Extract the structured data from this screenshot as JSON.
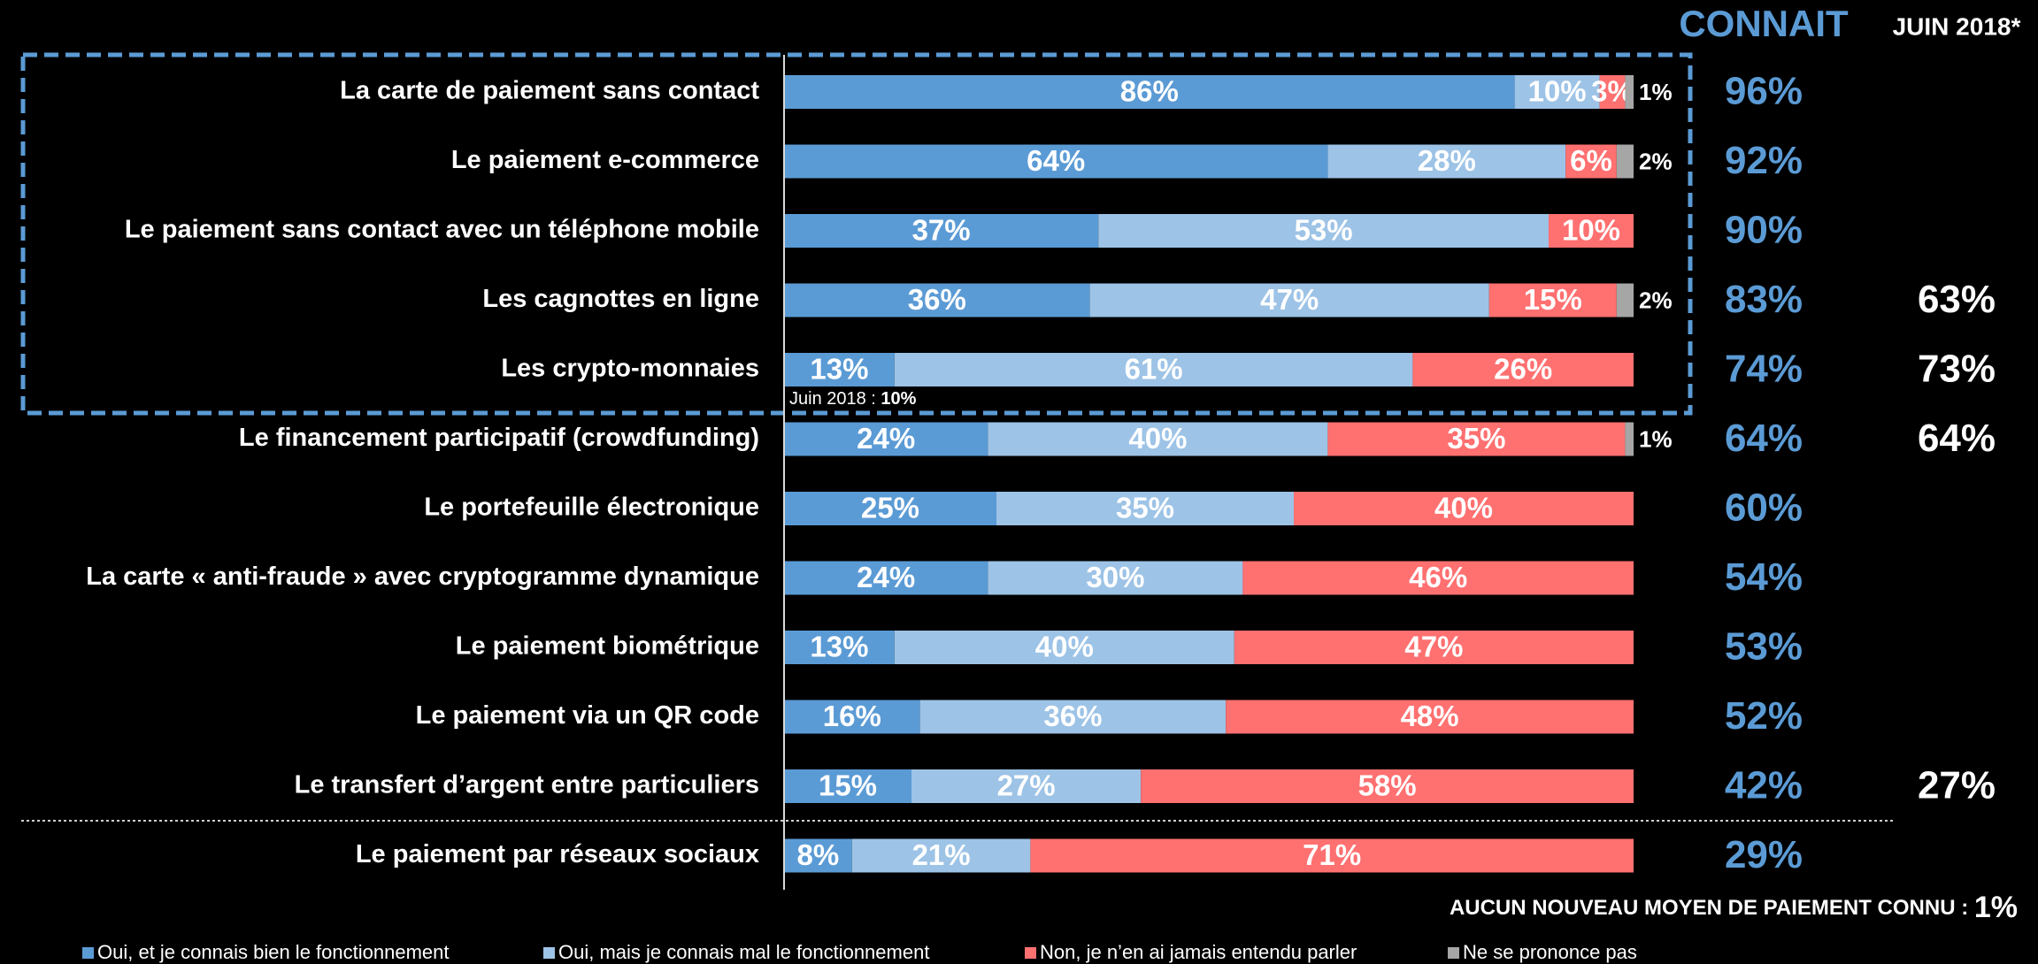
{
  "chart_data": {
    "type": "bar",
    "orientation": "horizontal",
    "stacked": true,
    "xlim": [
      0,
      100
    ],
    "categories": [
      "La carte de paiement sans contact",
      "Le paiement e-commerce",
      "Le paiement sans contact avec un téléphone mobile",
      "Les cagnottes en ligne",
      "Les crypto-monnaies",
      "Le financement participatif (crowdfunding)",
      "Le portefeuille électronique",
      "La carte « anti-fraude » avec cryptogramme dynamique",
      "Le paiement biométrique",
      "Le paiement via un QR code",
      "Le transfert d’argent entre particuliers",
      "Le paiement par réseaux sociaux"
    ],
    "series": [
      {
        "name": "Oui, et je connais bien le fonctionnement",
        "color": "#5b9bd5",
        "values": [
          86,
          64,
          37,
          36,
          13,
          24,
          25,
          24,
          13,
          16,
          15,
          8
        ],
        "value_labels": [
          "86%",
          "64%",
          "37%",
          "36%",
          "13%",
          "24%",
          "25%",
          "24%",
          "13%",
          "16%",
          "15%",
          "8%"
        ]
      },
      {
        "name": "Oui, mais je connais mal le fonctionnement",
        "color": "#9dc3e6",
        "values": [
          10,
          28,
          53,
          47,
          61,
          40,
          35,
          30,
          40,
          36,
          27,
          21
        ],
        "value_labels": [
          "10%",
          "28%",
          "53%",
          "47%",
          "61%",
          "40%",
          "35%",
          "30%",
          "40%",
          "36%",
          "27%",
          "21%"
        ]
      },
      {
        "name": "Non, je n’en ai jamais entendu parler",
        "color": "#ff7070",
        "values": [
          3,
          6,
          10,
          15,
          26,
          35,
          40,
          46,
          47,
          48,
          58,
          71
        ],
        "value_labels": [
          "3%",
          "6%",
          "10%",
          "15%",
          "26%",
          "35%",
          "40%",
          "46%",
          "47%",
          "48%",
          "58%",
          "71%"
        ]
      },
      {
        "name": "Ne se prononce pas",
        "color": "#a6a6a6",
        "values": [
          1,
          2,
          0,
          2,
          0,
          1,
          0,
          0,
          0,
          0,
          0,
          0
        ],
        "value_labels": [
          "1%",
          "2%",
          null,
          "2%",
          null,
          "1%",
          null,
          null,
          null,
          null,
          null,
          null
        ]
      }
    ],
    "connait": {
      "title": "CONNAIT",
      "color": "#5b9bd5",
      "values": [
        96,
        92,
        90,
        83,
        74,
        64,
        60,
        54,
        53,
        52,
        42,
        29
      ],
      "value_labels": [
        "96%",
        "92%",
        "90%",
        "83%",
        "74%",
        "64%",
        "60%",
        "54%",
        "53%",
        "52%",
        "42%",
        "29%"
      ]
    },
    "juin_2018": {
      "title": "JUIN 2018*",
      "values": [
        null,
        null,
        null,
        63,
        73,
        64,
        null,
        null,
        null,
        null,
        27,
        null
      ],
      "value_labels": [
        null,
        null,
        null,
        "63%",
        "73%",
        "64%",
        null,
        null,
        null,
        null,
        "27%",
        null
      ]
    },
    "annotation": {
      "prefix": "Juin 2018 : ",
      "value": 10,
      "label": "10%"
    },
    "footer": {
      "text": "AUCUN NOUVEAU MOYEN DE PAIEMENT CONNU : ",
      "value": 1,
      "label": "1%"
    }
  }
}
